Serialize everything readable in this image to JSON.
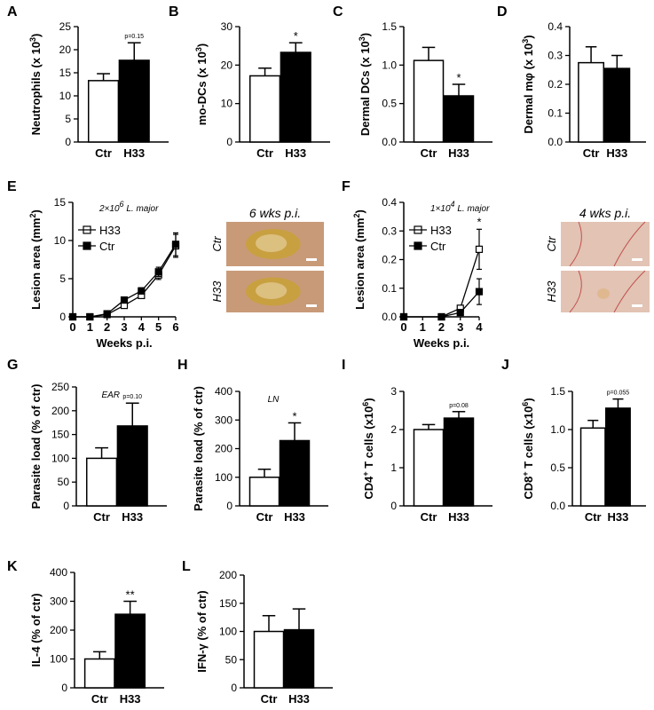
{
  "chart_data": [
    {
      "id": "A",
      "type": "bar",
      "categories": [
        "Ctr",
        "H33"
      ],
      "values": [
        13.3,
        17.7
      ],
      "errors": [
        1.5,
        3.8
      ],
      "ylabel_main": "Neutrophils (x 10",
      "ylabel_sup": "3",
      "ylabel_end": ")",
      "ylim": [
        0,
        25
      ],
      "yticks": [
        "0",
        "5",
        "10",
        "15",
        "20",
        "25"
      ],
      "annotation": "p=0.15"
    },
    {
      "id": "B",
      "type": "bar",
      "categories": [
        "Ctr",
        "H33"
      ],
      "values": [
        17.2,
        23.3
      ],
      "errors": [
        2.0,
        2.5
      ],
      "ylabel_main": "mo-DCs (x 10",
      "ylabel_sup": "3",
      "ylabel_end": ")",
      "ylim": [
        0,
        30
      ],
      "yticks": [
        "0",
        "10",
        "20",
        "30"
      ],
      "annotation": "*"
    },
    {
      "id": "C",
      "type": "bar",
      "categories": [
        "Ctr",
        "H33"
      ],
      "values": [
        1.06,
        0.6
      ],
      "errors": [
        0.17,
        0.15
      ],
      "ylabel_main": "Dermal DCs (x 10",
      "ylabel_sup": "3",
      "ylabel_end": ")",
      "ylim": [
        0,
        1.5
      ],
      "yticks": [
        "0.0",
        "0.5",
        "1.0",
        "1.5"
      ],
      "annotation": "*"
    },
    {
      "id": "D",
      "type": "bar",
      "categories": [
        "Ctr",
        "H33"
      ],
      "values": [
        0.275,
        0.255
      ],
      "errors": [
        0.055,
        0.045
      ],
      "ylabel_main": "Dermal mφ (x 10",
      "ylabel_sup": "3",
      "ylabel_end": ")",
      "ylim": [
        0,
        0.4
      ],
      "yticks": [
        "0.0",
        "0.1",
        "0.2",
        "0.3",
        "0.4"
      ],
      "annotation": ""
    },
    {
      "id": "E",
      "type": "line",
      "xlabel": "Weeks p.i.",
      "ylabel_main": "Lesion area (mm",
      "ylabel_sup": "2",
      "ylabel_end": ")",
      "xlim": [
        0,
        6
      ],
      "ylim": [
        0,
        15
      ],
      "xticks": [
        "0",
        "1",
        "2",
        "3",
        "4",
        "5",
        "6"
      ],
      "yticks": [
        "0",
        "5",
        "10",
        "15"
      ],
      "inset_pre": "2×10",
      "inset_sup": "6",
      "inset_post": " L. major",
      "series": [
        {
          "name": "H33",
          "marker": "open",
          "x": [
            0,
            1,
            2,
            3,
            4,
            5,
            6
          ],
          "y": [
            0,
            0,
            0.3,
            1.5,
            2.8,
            5.5,
            9.3
          ],
          "err": [
            0,
            0,
            0.1,
            0.3,
            0.4,
            0.6,
            1.5
          ]
        },
        {
          "name": "Ctr",
          "marker": "filled",
          "x": [
            0,
            1,
            2,
            3,
            4,
            5,
            6
          ],
          "y": [
            0,
            0,
            0.4,
            2.2,
            3.4,
            5.9,
            9.5
          ],
          "err": [
            0,
            0,
            0.1,
            0.3,
            0.4,
            0.6,
            1.5
          ]
        }
      ],
      "annotation": ""
    },
    {
      "id": "F",
      "type": "line",
      "xlabel": "Weeks p.i.",
      "ylabel_main": "Lesion area (mm",
      "ylabel_sup": "2",
      "ylabel_end": ")",
      "xlim": [
        0,
        4
      ],
      "ylim": [
        0,
        0.4
      ],
      "xticks": [
        "0",
        "1",
        "2",
        "3",
        "4"
      ],
      "yticks": [
        "0.0",
        "0.1",
        "0.2",
        "0.3",
        "0.4"
      ],
      "inset_pre": "1×10",
      "inset_sup": "4",
      "inset_post": " L. major",
      "series": [
        {
          "name": "H33",
          "marker": "open",
          "x": [
            0,
            2,
            3,
            4
          ],
          "y": [
            0,
            0,
            0.03,
            0.236
          ],
          "err": [
            0,
            0,
            0.01,
            0.07
          ]
        },
        {
          "name": "Ctr",
          "marker": "filled",
          "x": [
            0,
            2,
            3,
            4
          ],
          "y": [
            0,
            0,
            0.015,
            0.088
          ],
          "err": [
            0,
            0,
            0.008,
            0.045
          ]
        }
      ],
      "annotation": "*"
    },
    {
      "id": "G",
      "type": "bar",
      "categories": [
        "Ctr",
        "H33"
      ],
      "values": [
        100,
        168
      ],
      "errors": [
        22,
        48
      ],
      "ylabel_main": "Parasite load (% of ctr)",
      "ylabel_sup": "",
      "ylabel_end": "",
      "ylim": [
        0,
        250
      ],
      "yticks": [
        "0",
        "50",
        "100",
        "150",
        "200",
        "250"
      ],
      "annotation": "p=0.10",
      "inset_label": "EAR"
    },
    {
      "id": "H",
      "type": "bar",
      "categories": [
        "Ctr",
        "H33"
      ],
      "values": [
        100,
        228
      ],
      "errors": [
        28,
        62
      ],
      "ylabel_main": "Parasite load (% of ctr)",
      "ylabel_sup": "",
      "ylabel_end": "",
      "ylim": [
        0,
        400
      ],
      "yticks": [
        "0",
        "100",
        "200",
        "300",
        "400"
      ],
      "annotation": "*",
      "inset_label": "LN"
    },
    {
      "id": "I",
      "type": "bar",
      "categories": [
        "Ctr",
        "H33"
      ],
      "values": [
        2.0,
        2.3
      ],
      "errors": [
        0.13,
        0.17
      ],
      "ylabel_main": "CD4",
      "ylabel_sup": "+",
      "ylabel_end": " T cells (x10",
      "ylabel_sup2": "6",
      "ylabel_end2": ")",
      "ylim": [
        0,
        3
      ],
      "yticks": [
        "0",
        "1",
        "2",
        "3"
      ],
      "annotation": "p=0.08"
    },
    {
      "id": "J",
      "type": "bar",
      "categories": [
        "Ctr",
        "H33"
      ],
      "values": [
        1.02,
        1.28
      ],
      "errors": [
        0.1,
        0.12
      ],
      "ylabel_main": "CD8",
      "ylabel_sup": "+",
      "ylabel_end": " T cells (x10",
      "ylabel_sup2": "6",
      "ylabel_end2": ")",
      "ylim": [
        0,
        1.5
      ],
      "yticks": [
        "0.0",
        "0.5",
        "1.0",
        "1.5"
      ],
      "annotation": "p=0.055"
    },
    {
      "id": "K",
      "type": "bar",
      "categories": [
        "Ctr",
        "H33"
      ],
      "values": [
        100,
        255
      ],
      "errors": [
        25,
        45
      ],
      "ylabel_main": "IL-4 (% of ctr)",
      "ylabel_sup": "",
      "ylabel_end": "",
      "ylim": [
        0,
        400
      ],
      "yticks": [
        "0",
        "100",
        "200",
        "300",
        "400"
      ],
      "annotation": "**"
    },
    {
      "id": "L",
      "type": "bar",
      "categories": [
        "Ctr",
        "H33"
      ],
      "values": [
        100,
        103
      ],
      "errors": [
        28,
        37
      ],
      "ylabel_main": "IFN-γ (% of ctr)",
      "ylabel_sup": "",
      "ylabel_end": "",
      "ylim": [
        0,
        200
      ],
      "yticks": [
        "0",
        "50",
        "100",
        "150",
        "200"
      ],
      "annotation": ""
    }
  ],
  "photos": [
    {
      "id": "E",
      "title": "6 wks p.i.",
      "rows": [
        "Ctr",
        "H33"
      ]
    },
    {
      "id": "F",
      "title": "4 wks p.i.",
      "rows": [
        "Ctr",
        "H33"
      ]
    }
  ],
  "colors": {
    "bar_ctr": "#ffffff",
    "bar_h33": "#000000",
    "axis": "#000000",
    "skin_e": "#c89a78",
    "wound": "#c8a040",
    "skin_f": "#e2c3b4",
    "vessel": "#c0504d"
  }
}
